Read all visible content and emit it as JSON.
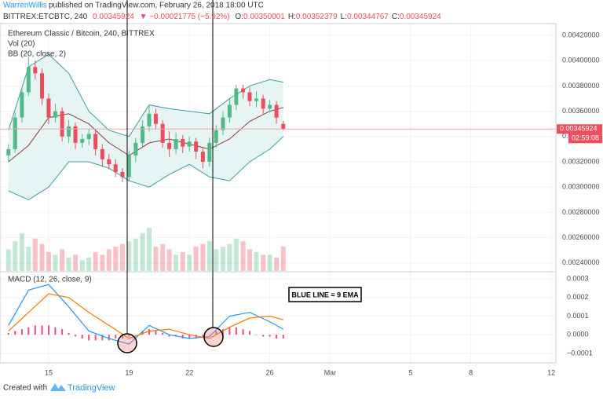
{
  "header": {
    "author": "WarrenWillis",
    "published": "published on TradingView.com, February 26, 2018 18:00 UTC",
    "symbol": "BITTREX:ETCBTC, 240",
    "last": "0.00345924",
    "change": "▼ −0.00021775 (−5.92%)",
    "ohlc": [
      {
        "label": "O:",
        "value": "0.00350001"
      },
      {
        "label": "H:",
        "value": "0.00352379"
      },
      {
        "label": "L:",
        "value": "0.00344767"
      },
      {
        "label": "C:",
        "value": "0.00345924"
      }
    ]
  },
  "chart_data": {
    "type": "candlestick",
    "title": "Ethereum Classic / Bitcoin, 240, BITTREX",
    "indicators": [
      "Vol (20)",
      "BB (20, close, 2)"
    ],
    "up_color": "#53b987",
    "down_color": "#eb4d5c",
    "xlim": [
      12.58,
      40.23
    ],
    "xticks": [
      15,
      19,
      22,
      26,
      {
        "value": 29,
        "label": "Mar"
      },
      {
        "value": 33,
        "label": "5"
      },
      {
        "value": 36,
        "label": "8"
      },
      {
        "value": 40,
        "label": "12"
      }
    ],
    "ylim": [
      0.002337,
      0.004293
    ],
    "yticks": [
      {
        "value": 0.0042,
        "label": "0.00420000"
      },
      {
        "value": 0.004,
        "label": "0.00400000"
      },
      {
        "value": 0.0038,
        "label": "0.00380000"
      },
      {
        "value": 0.0036,
        "label": "0.00360000"
      },
      {
        "value": 0.0034,
        "label": "0.00340000"
      },
      {
        "value": 0.0032,
        "label": "0.00320000"
      },
      {
        "value": 0.003,
        "label": "0.00300000"
      },
      {
        "value": 0.0028,
        "label": "0.00280000"
      },
      {
        "value": 0.0026,
        "label": "0.00260000"
      },
      {
        "value": 0.0024,
        "label": "0.00240000"
      }
    ],
    "last_price": 0.00345924,
    "countdown": "02:59:08",
    "x": [
      13,
      13.33,
      13.67,
      14,
      14.33,
      14.67,
      15,
      15.33,
      15.67,
      16,
      16.33,
      16.67,
      17,
      17.33,
      17.67,
      18,
      18.33,
      18.67,
      19,
      19.33,
      19.67,
      20,
      20.33,
      20.67,
      21,
      21.33,
      21.67,
      22,
      22.33,
      22.67,
      23,
      23.33,
      23.67,
      24,
      24.33,
      24.67,
      25,
      25.33,
      25.67,
      26,
      26.33,
      26.67
    ],
    "open": [
      0.00325,
      0.0033,
      0.00355,
      0.00375,
      0.00395,
      0.0039,
      0.0037,
      0.00355,
      0.0036,
      0.0034,
      0.00348,
      0.00335,
      0.00338,
      0.00342,
      0.0033,
      0.00322,
      0.00318,
      0.00312,
      0.00308,
      0.00325,
      0.00335,
      0.00348,
      0.00358,
      0.0035,
      0.00335,
      0.0033,
      0.00338,
      0.00332,
      0.00336,
      0.00328,
      0.0032,
      0.00335,
      0.00345,
      0.00355,
      0.00365,
      0.00378,
      0.00375,
      0.00368,
      0.0037,
      0.00362,
      0.00365,
      0.00350001
    ],
    "high": [
      0.00334,
      0.00359,
      0.00379,
      0.00403,
      0.004,
      0.00394,
      0.00374,
      0.00366,
      0.00363,
      0.00353,
      0.00351,
      0.00342,
      0.00346,
      0.00345,
      0.00334,
      0.00326,
      0.00322,
      0.00315,
      0.00329,
      0.00339,
      0.00353,
      0.00364,
      0.00362,
      0.00353,
      0.00344,
      0.00343,
      0.00341,
      0.0034,
      0.00339,
      0.00331,
      0.00339,
      0.00349,
      0.0036,
      0.0037,
      0.00381,
      0.00381,
      0.00379,
      0.00376,
      0.00373,
      0.00369,
      0.00368,
      0.00352379
    ],
    "low": [
      0.0032,
      0.00327,
      0.00351,
      0.00372,
      0.00385,
      0.00365,
      0.0035,
      0.00351,
      0.00336,
      0.00335,
      0.0033,
      0.00331,
      0.00333,
      0.00325,
      0.00316,
      0.00314,
      0.00308,
      0.00304,
      0.00305,
      0.0032,
      0.00331,
      0.00344,
      0.00346,
      0.00331,
      0.00324,
      0.00326,
      0.00327,
      0.00328,
      0.00322,
      0.00315,
      0.00316,
      0.00331,
      0.00341,
      0.00351,
      0.00361,
      0.0037,
      0.00364,
      0.00363,
      0.00358,
      0.00359,
      0.0035,
      0.00344767
    ],
    "close": [
      0.0033,
      0.00355,
      0.00375,
      0.00395,
      0.0039,
      0.0037,
      0.00355,
      0.0036,
      0.0034,
      0.00348,
      0.00335,
      0.00338,
      0.00342,
      0.0033,
      0.00322,
      0.00318,
      0.00312,
      0.00308,
      0.00325,
      0.00335,
      0.00348,
      0.00358,
      0.0035,
      0.00335,
      0.0033,
      0.00338,
      0.00332,
      0.00336,
      0.00328,
      0.0032,
      0.00335,
      0.00345,
      0.00355,
      0.00365,
      0.00378,
      0.00375,
      0.00368,
      0.0037,
      0.00362,
      0.00365,
      0.00355,
      0.00345924
    ],
    "volume": [
      40,
      55,
      70,
      45,
      60,
      50,
      35,
      30,
      40,
      25,
      30,
      20,
      25,
      35,
      30,
      40,
      45,
      50,
      55,
      60,
      70,
      80,
      45,
      50,
      40,
      30,
      35,
      30,
      45,
      50,
      55,
      40,
      45,
      50,
      60,
      55,
      40,
      35,
      30,
      30,
      25,
      45
    ],
    "bollinger": {
      "x": [
        13,
        14,
        15,
        16,
        17,
        18,
        19,
        20,
        21,
        22,
        23,
        24,
        25,
        26,
        26.67
      ],
      "upper": [
        0.00345,
        0.00395,
        0.00405,
        0.0039,
        0.0036,
        0.00345,
        0.0034,
        0.00365,
        0.00362,
        0.0036,
        0.00358,
        0.0037,
        0.0038,
        0.00385,
        0.00383
      ],
      "basis": [
        0.0032,
        0.00333,
        0.00355,
        0.00358,
        0.0035,
        0.00335,
        0.00325,
        0.00335,
        0.00338,
        0.00334,
        0.0033,
        0.00338,
        0.00352,
        0.0036,
        0.00363
      ],
      "lower": [
        0.00297,
        0.0029,
        0.003,
        0.0032,
        0.0032,
        0.00315,
        0.00305,
        0.003,
        0.0031,
        0.00318,
        0.00308,
        0.00305,
        0.0032,
        0.0033,
        0.0034
      ],
      "band_color": "#3a9ea5",
      "basis_color": "#8e3b3b",
      "fill": "#e6f4f3"
    },
    "macd": {
      "title": "MACD (12, 26, close, 9)",
      "annotation": "BLUE LINE = 9 EMA",
      "ylim": [
        0.000334,
        -0.000151
      ],
      "yticks": [
        0.0003,
        0.0002,
        0.0001,
        {
          "value": 0,
          "label": "0.0000"
        },
        {
          "value": -0.0001,
          "label": "−0.0001"
        }
      ],
      "x": [
        13,
        14,
        15,
        16,
        17,
        18,
        19,
        20,
        21,
        22,
        23,
        24,
        25,
        26,
        26.67
      ],
      "series": [
        {
          "name": "MACD",
          "color": "#2196f3",
          "values": [
            5e-05,
            0.00024,
            0.00027,
            0.00015,
            2e-05,
            -2e-05,
            -5e-05,
            5e-05,
            0.0,
            -2e-05,
            -1e-05,
            0.0001,
            0.00012,
            7e-05,
            3e-05
          ]
        },
        {
          "name": "Signal",
          "color": "#f57c00",
          "values": [
            2e-05,
            0.00012,
            0.00022,
            0.0002,
            0.00012,
            5e-05,
            -2e-05,
            2e-05,
            3e-05,
            0.0,
            -2e-05,
            4e-05,
            9e-05,
            0.0001,
            8e-05
          ]
        }
      ],
      "histogram_color": "#e91e63",
      "histogram": [
        1e-05,
        2e-05,
        3e-05,
        4e-05,
        5e-05,
        5e-05,
        5e-05,
        4e-05,
        3e-05,
        1e-05,
        -1e-05,
        -2e-05,
        -3e-05,
        -3e-05,
        -3e-05,
        -3e-05,
        -2e-05,
        -2e-05,
        -1e-05,
        0.0,
        2e-05,
        3e-05,
        2e-05,
        1e-05,
        -1e-05,
        -1e-05,
        -2e-05,
        -2e-05,
        -2e-05,
        -1e-05,
        0.0,
        2e-05,
        3e-05,
        4e-05,
        4e-05,
        3e-05,
        2e-05,
        0.0,
        -1e-05,
        -1e-05,
        -2e-05,
        -2e-05
      ]
    }
  },
  "footer": {
    "created": "Created with",
    "brand": "TradingView"
  }
}
